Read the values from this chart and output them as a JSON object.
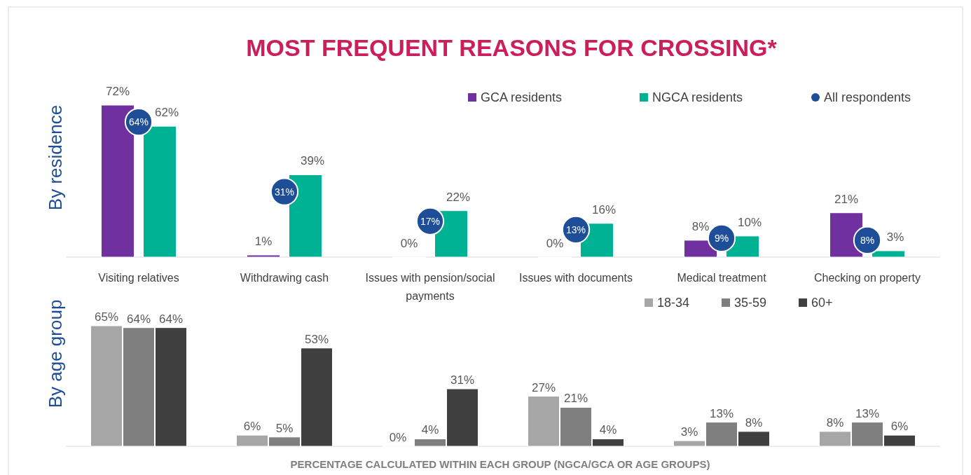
{
  "chart_data": [
    {
      "type": "bar",
      "title": "MOST FREQUENT REASONS FOR CROSSING*",
      "ylabel": "By residence",
      "categories": [
        "Visiting relatives",
        "Withdrawing cash",
        "Issues with pension/social payments",
        "Issues with documents",
        "Medical treatment",
        "Checking on property"
      ],
      "series": [
        {
          "name": "GCA residents",
          "color": "#7030a0",
          "values": [
            72,
            1,
            0,
            0,
            8,
            21
          ],
          "value_labels": [
            "72%",
            "1%",
            "0%",
            "0%",
            "8%",
            "21%"
          ]
        },
        {
          "name": "NGCA residents",
          "color": "#00b294",
          "values": [
            62,
            39,
            22,
            16,
            10,
            3
          ],
          "value_labels": [
            "62%",
            "39%",
            "22%",
            "16%",
            "10%",
            "3%"
          ]
        },
        {
          "name": "All respondents",
          "type": "scatter",
          "color": "#1f4e99",
          "values": [
            64,
            31,
            17,
            13,
            9,
            8
          ],
          "value_labels": [
            "64%",
            "31%",
            "17%",
            "13%",
            "9%",
            "8%"
          ]
        }
      ],
      "marker": "circle",
      "legend": "top right",
      "tick_labels": "x"
    },
    {
      "type": "bar",
      "ylabel": "By age group",
      "categories": [
        null,
        null,
        null,
        null,
        null,
        null
      ],
      "series": [
        {
          "name": "18-34",
          "color": "#a6a6a6",
          "values": [
            65,
            6,
            0,
            27,
            3,
            8
          ],
          "value_labels": [
            "65%",
            "6%",
            "0%",
            "27%",
            "3%",
            "8%"
          ]
        },
        {
          "name": "35-59",
          "color": "#7f7f7f",
          "values": [
            64,
            5,
            4,
            21,
            13,
            13
          ],
          "value_labels": [
            "64%",
            "5%",
            "4%",
            "21%",
            "13%",
            "13%"
          ]
        },
        {
          "name": "60+",
          "color": "#404040",
          "values": [
            64,
            53,
            31,
            4,
            8,
            6
          ],
          "value_labels": [
            "64%",
            "53%",
            "31%",
            "4%",
            "8%",
            "6%"
          ]
        }
      ],
      "annotations": [
        "PERCENTAGE CALCULATED WITHIN EACH GROUP (NGCA/GCA OR AGE GROUPS)"
      ],
      "legend": "top right",
      "tick_labels": false
    }
  ]
}
